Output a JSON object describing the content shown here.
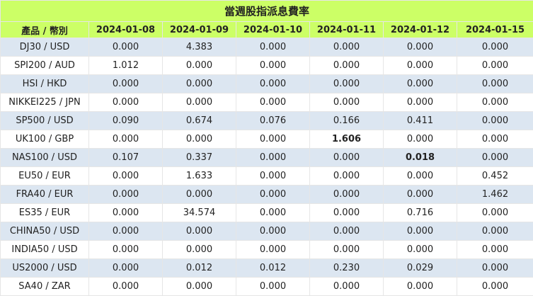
{
  "table": {
    "title": "當週股指派息費率",
    "header": [
      "產品 / 幣別",
      "2024-01-08",
      "2024-01-09",
      "2024-01-10",
      "2024-01-11",
      "2024-01-12",
      "2024-01-15"
    ],
    "rows": [
      [
        "DJ30 / USD",
        "0.000",
        "4.383",
        "0.000",
        "0.000",
        "0.000",
        "0.000"
      ],
      [
        "SPI200 / AUD",
        "1.012",
        "0.000",
        "0.000",
        "0.000",
        "0.000",
        "0.000"
      ],
      [
        "HSI / HKD",
        "0.000",
        "0.000",
        "0.000",
        "0.000",
        "0.000",
        "0.000"
      ],
      [
        "NIKKEI225 / JPN",
        "0.000",
        "0.000",
        "0.000",
        "0.000",
        "0.000",
        "0.000"
      ],
      [
        "SP500 / USD",
        "0.090",
        "0.674",
        "0.076",
        "0.166",
        "0.411",
        "0.000"
      ],
      [
        "UK100 / GBP",
        "0.000",
        "0.000",
        "0.000",
        "1.606",
        "0.000",
        "0.000"
      ],
      [
        "NAS100 / USD",
        "0.107",
        "0.337",
        "0.000",
        "0.000",
        "0.018",
        "0.000"
      ],
      [
        "EU50 / EUR",
        "0.000",
        "1.633",
        "0.000",
        "0.000",
        "0.000",
        "0.452"
      ],
      [
        "FRA40 / EUR",
        "0.000",
        "0.000",
        "0.000",
        "0.000",
        "0.000",
        "1.462"
      ],
      [
        "ES35 / EUR",
        "0.000",
        "34.574",
        "0.000",
        "0.000",
        "0.716",
        "0.000"
      ],
      [
        "CHINA50 / USD",
        "0.000",
        "0.000",
        "0.000",
        "0.000",
        "0.000",
        "0.000"
      ],
      [
        "INDIA50 / USD",
        "0.000",
        "0.000",
        "0.000",
        "0.000",
        "0.000",
        "0.000"
      ],
      [
        "US2000 / USD",
        "0.000",
        "0.012",
        "0.012",
        "0.230",
        "0.029",
        "0.000"
      ],
      [
        "SA40 / ZAR",
        "0.000",
        "0.000",
        "0.000",
        "0.000",
        "0.000",
        "0.000"
      ]
    ],
    "bold_cells": [
      [
        5,
        4
      ],
      [
        6,
        5
      ]
    ]
  }
}
